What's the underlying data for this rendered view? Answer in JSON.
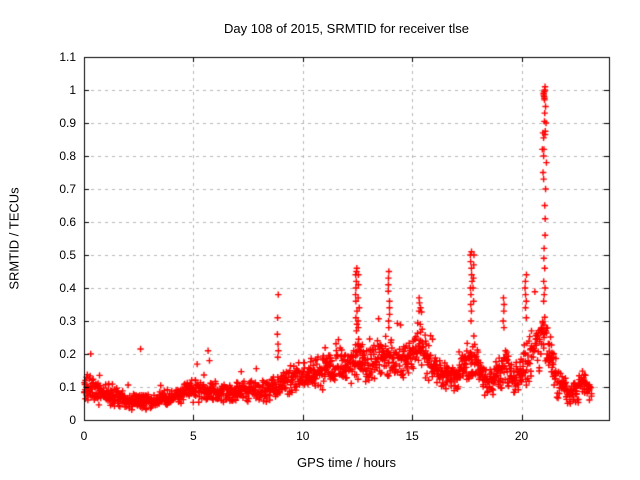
{
  "figure": {
    "background": "#ffffff",
    "text_color": "#000000",
    "grid_color": "#b8b8b8",
    "border_color": "#000000"
  },
  "chart_data": {
    "type": "scatter",
    "title": "Day 108 of 2015, SRMTID for receiver tlse",
    "xlabel": "GPS time / hours",
    "ylabel": "SRMTID / TECUs",
    "legend": "none",
    "marker": "plus",
    "marker_color": "#ff0000",
    "grid": "dashed gray, horizontal at every 0.1, vertical at every 5 hours",
    "xlim": [
      0,
      24
    ],
    "ylim": [
      0,
      1.1
    ],
    "xticks": [
      0,
      5,
      10,
      15,
      20
    ],
    "xtick_labels": [
      "0",
      "5",
      "10",
      "15",
      "20"
    ],
    "yticks": [
      0,
      0.1,
      0.2,
      0.3,
      0.4,
      0.5,
      0.6,
      0.7,
      0.8,
      0.9,
      1.0,
      1.1
    ],
    "ytick_labels": [
      "0",
      "0.1",
      "0.2",
      "0.3",
      "0.4",
      "0.5",
      "0.6",
      "0.7",
      "0.8",
      "0.9",
      "1",
      "1.1"
    ],
    "data_x_extent": [
      0,
      23.2
    ],
    "band_envelope_description": "dense noisy band of + markers; [hour, band_min, band_max] control points read from plot",
    "band_envelope": [
      [
        0.0,
        0.05,
        0.13
      ],
      [
        0.3,
        0.05,
        0.16
      ],
      [
        0.7,
        0.04,
        0.13
      ],
      [
        1.0,
        0.04,
        0.12
      ],
      [
        1.5,
        0.035,
        0.1
      ],
      [
        2.0,
        0.03,
        0.085
      ],
      [
        2.5,
        0.03,
        0.09
      ],
      [
        3.0,
        0.03,
        0.08
      ],
      [
        3.5,
        0.035,
        0.09
      ],
      [
        4.0,
        0.04,
        0.1
      ],
      [
        4.5,
        0.045,
        0.12
      ],
      [
        5.0,
        0.05,
        0.13
      ],
      [
        5.5,
        0.05,
        0.14
      ],
      [
        6.0,
        0.05,
        0.12
      ],
      [
        6.5,
        0.045,
        0.11
      ],
      [
        7.0,
        0.05,
        0.12
      ],
      [
        7.5,
        0.055,
        0.13
      ],
      [
        8.0,
        0.05,
        0.12
      ],
      [
        8.5,
        0.05,
        0.14
      ],
      [
        9.0,
        0.06,
        0.16
      ],
      [
        9.5,
        0.07,
        0.18
      ],
      [
        10.0,
        0.08,
        0.19
      ],
      [
        10.5,
        0.09,
        0.21
      ],
      [
        11.0,
        0.09,
        0.21
      ],
      [
        11.3,
        0.1,
        0.23
      ],
      [
        11.7,
        0.1,
        0.24
      ],
      [
        12.0,
        0.1,
        0.22
      ],
      [
        12.5,
        0.11,
        0.27
      ],
      [
        13.0,
        0.1,
        0.23
      ],
      [
        13.5,
        0.11,
        0.25
      ],
      [
        14.0,
        0.12,
        0.27
      ],
      [
        14.5,
        0.12,
        0.23
      ],
      [
        15.0,
        0.13,
        0.27
      ],
      [
        15.35,
        0.14,
        0.32
      ],
      [
        15.7,
        0.12,
        0.25
      ],
      [
        16.0,
        0.1,
        0.21
      ],
      [
        16.5,
        0.08,
        0.19
      ],
      [
        17.0,
        0.08,
        0.18
      ],
      [
        17.5,
        0.11,
        0.24
      ],
      [
        17.8,
        0.12,
        0.27
      ],
      [
        18.2,
        0.06,
        0.17
      ],
      [
        18.6,
        0.07,
        0.18
      ],
      [
        19.0,
        0.09,
        0.22
      ],
      [
        19.3,
        0.09,
        0.23
      ],
      [
        19.6,
        0.06,
        0.18
      ],
      [
        20.0,
        0.09,
        0.23
      ],
      [
        20.4,
        0.11,
        0.28
      ],
      [
        20.8,
        0.13,
        0.33
      ],
      [
        21.05,
        0.14,
        0.34
      ],
      [
        21.3,
        0.12,
        0.28
      ],
      [
        21.6,
        0.05,
        0.17
      ],
      [
        22.0,
        0.05,
        0.14
      ],
      [
        22.3,
        0.04,
        0.12
      ],
      [
        22.7,
        0.05,
        0.16
      ],
      [
        23.0,
        0.05,
        0.14
      ],
      [
        23.2,
        0.04,
        0.13
      ]
    ],
    "spikes_description": "isolated outliers / tall columns of + markers; x in hours, values in TECUs",
    "spikes": [
      {
        "x": 2.62,
        "values": [
          0.215
        ]
      },
      {
        "x": 5.7,
        "values": [
          0.21,
          0.18
        ]
      },
      {
        "x": 8.85,
        "values": [
          0.38,
          0.31,
          0.26,
          0.23,
          0.21,
          0.19
        ]
      },
      {
        "x": 12.45,
        "values": [
          0.46,
          0.45,
          0.44,
          0.42,
          0.4,
          0.38,
          0.36,
          0.33,
          0.31,
          0.29,
          0.27
        ]
      },
      {
        "x": 12.55,
        "values": [
          0.44,
          0.41,
          0.37,
          0.34,
          0.3,
          0.28
        ]
      },
      {
        "x": 13.95,
        "values": [
          0.45,
          0.43,
          0.41,
          0.39,
          0.36,
          0.34,
          0.32,
          0.3,
          0.28
        ]
      },
      {
        "x": 15.35,
        "values": [
          0.37,
          0.355,
          0.34,
          0.33
        ]
      },
      {
        "x": 17.7,
        "values": [
          0.51,
          0.5,
          0.48,
          0.46,
          0.44,
          0.42,
          0.4,
          0.38,
          0.35,
          0.33,
          0.3
        ]
      },
      {
        "x": 17.82,
        "values": [
          0.5,
          0.47,
          0.43,
          0.4,
          0.36
        ]
      },
      {
        "x": 19.2,
        "values": [
          0.37,
          0.35,
          0.33,
          0.3,
          0.28
        ]
      },
      {
        "x": 20.2,
        "values": [
          0.44,
          0.42,
          0.4,
          0.38,
          0.36,
          0.34,
          0.31
        ]
      },
      {
        "x": 20.95,
        "values": [
          0.87,
          0.82,
          0.75
        ]
      },
      {
        "x": 21.05,
        "values": [
          1.01,
          1.0,
          0.995,
          0.99,
          0.985,
          0.98,
          0.975,
          0.97,
          0.93,
          0.905,
          0.875,
          0.865,
          0.855,
          0.82,
          0.8,
          0.73,
          0.65,
          0.61,
          0.56,
          0.52,
          0.49,
          0.46,
          0.42,
          0.4,
          0.38,
          0.36
        ]
      },
      {
        "x": 21.12,
        "values": [
          0.95,
          0.9,
          0.78,
          0.7
        ]
      }
    ],
    "point_generation": {
      "seed": 108,
      "epoch_step_hours": 0.05,
      "points_per_epoch_min": 3,
      "points_per_epoch_extra_prob": 0.6,
      "outlier_prob": 0.012
    }
  }
}
